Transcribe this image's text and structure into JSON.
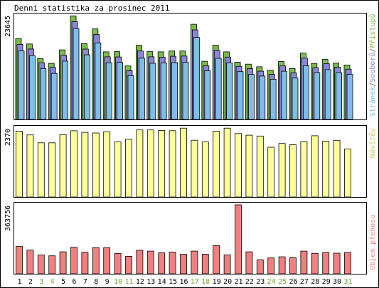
{
  "chart_data": [
    {
      "type": "bar",
      "title": "Denní statistika za prosinec 2011",
      "ymax_label": "23645",
      "ymax": 23645,
      "categories": [
        "1",
        "2",
        "3",
        "4",
        "5",
        "6",
        "7",
        "8",
        "9",
        "10",
        "11",
        "12",
        "13",
        "14",
        "15",
        "16",
        "17",
        "18",
        "19",
        "20",
        "21",
        "22",
        "23",
        "24",
        "25",
        "26",
        "27",
        "28",
        "29",
        "30",
        "31"
      ],
      "weekend_days": [
        "3",
        "4",
        "10",
        "11",
        "17",
        "18",
        "24",
        "25",
        "31"
      ],
      "legend": [
        {
          "text": "Stránek",
          "color": "#7fbde8"
        },
        {
          "text": "/",
          "color": "#555555"
        },
        {
          "text": "Souborů",
          "color": "#8a86d8"
        },
        {
          "text": "/",
          "color": "#555555"
        },
        {
          "text": "Přístupů",
          "color": "#7cba4c"
        }
      ],
      "series": [
        {
          "name": "Přístupů",
          "color": "#7cba4c",
          "values": [
            18430,
            17200,
            13900,
            12770,
            15860,
            23600,
            17260,
            20640,
            15400,
            15450,
            12200,
            16900,
            15450,
            15400,
            15600,
            15600,
            21690,
            13270,
            16900,
            15400,
            13050,
            12600,
            12000,
            11200,
            13200,
            11600,
            15120,
            12760,
            13680,
            12830,
            12400
          ]
        },
        {
          "name": "Souborů",
          "color": "#8a86d8",
          "values": [
            17110,
            16050,
            12900,
            11850,
            14600,
            22290,
            16040,
            19350,
            14260,
            14230,
            11100,
            15600,
            14260,
            14180,
            14400,
            14450,
            20400,
            12230,
            15760,
            14200,
            12100,
            11600,
            11000,
            10300,
            12200,
            10600,
            13960,
            11800,
            12700,
            11900,
            11450
          ]
        },
        {
          "name": "Stránek",
          "color": "#7fbde8",
          "values": [
            15650,
            14520,
            11620,
            10500,
            13300,
            20720,
            14720,
            17450,
            12900,
            13000,
            10000,
            13960,
            12800,
            12860,
            12950,
            13020,
            18690,
            11100,
            13930,
            12900,
            10900,
            10250,
            9900,
            9160,
            11000,
            9440,
            12240,
            10670,
            11350,
            10650,
            10270
          ]
        }
      ]
    },
    {
      "type": "bar",
      "ymax_label": "2370",
      "ymax": 2370,
      "legend": [
        {
          "text": "Návštěv",
          "color": "#cccc66"
        }
      ],
      "series": [
        {
          "name": "Návštěv",
          "color": "#ffff99",
          "values": [
            2258,
            2133,
            1863,
            1863,
            2143,
            2274,
            2220,
            2199,
            2242,
            1890,
            1985,
            2304,
            2304,
            2288,
            2277,
            2365,
            1949,
            1890,
            2258,
            2365,
            2180,
            2123,
            2093,
            1710,
            1839,
            1793,
            1901,
            2103,
            1918,
            1947,
            1650
          ]
        }
      ]
    },
    {
      "type": "bar",
      "ymax_label": "363756",
      "ymax": 363756,
      "legend": [
        {
          "text": "Objem přenosu",
          "color": "#ee8888"
        }
      ],
      "series": [
        {
          "name": "Objem přenosu",
          "color": "#f08080",
          "values": [
            143900,
            125240,
            99500,
            95000,
            115690,
            139880,
            113560,
            138140,
            138140,
            107060,
            92240,
            123850,
            119710,
            110810,
            114810,
            102980,
            119710,
            103210,
            148390,
            99790,
            363756,
            116000,
            73880,
            83540,
            89800,
            85480,
            119740,
            107650,
            112050,
            108850,
            112330
          ]
        }
      ]
    }
  ]
}
